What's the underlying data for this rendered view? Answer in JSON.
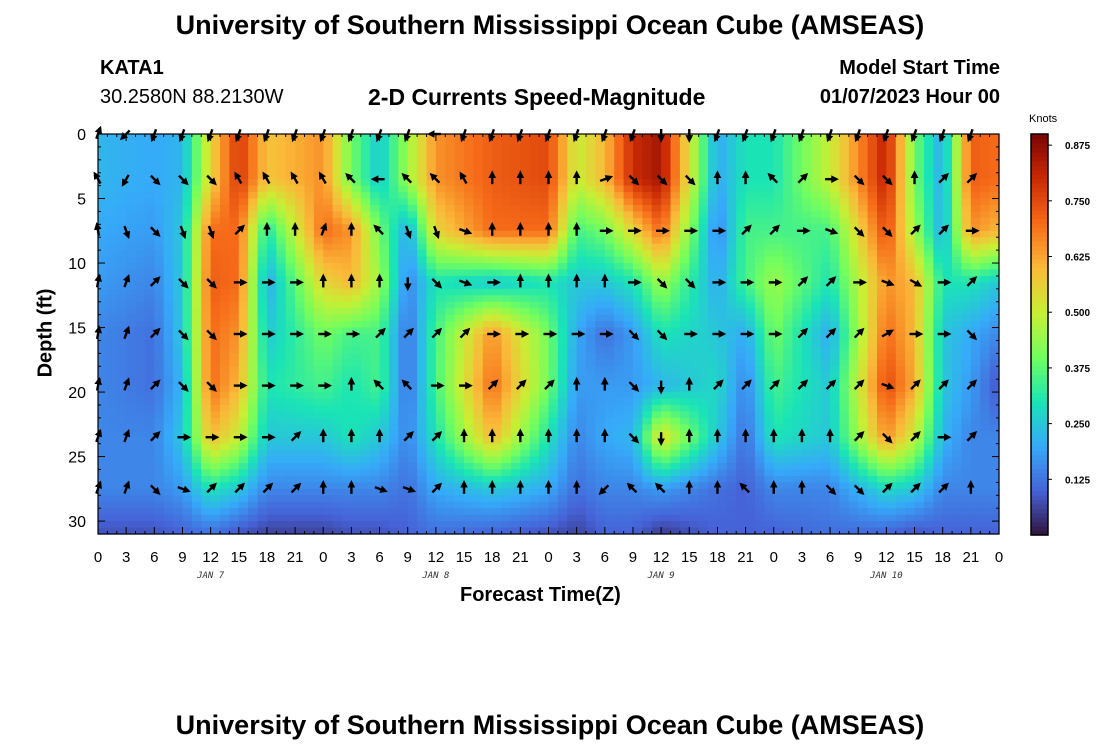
{
  "header": {
    "title": "University of Southern Mississippi Ocean Cube (AMSEAS)",
    "station": "KATA1",
    "coords": "30.2580N  88.2130W",
    "subtitle": "2-D Currents Speed-Magnitude",
    "model_start_label": "Model Start Time",
    "model_start_value": "01/07/2023 Hour 00"
  },
  "footer": {
    "title": "University of Southern Mississippi Ocean Cube (AMSEAS)"
  },
  "colors": {
    "colormap": [
      "#30123b",
      "#4662d7",
      "#36aaf9",
      "#1ae4b6",
      "#72fe5e",
      "#c8ef34",
      "#faba39",
      "#f66b19",
      "#cb2a04",
      "#7a0403"
    ]
  },
  "chart_data": {
    "type": "heatmap",
    "title": "2-D Currents Speed-Magnitude",
    "xlabel": "Forecast Time(Z)",
    "ylabel": "Depth (ft)",
    "colorbar_label": "Knots",
    "x_ticks": [
      "0",
      "3",
      "6",
      "9",
      "12",
      "15",
      "18",
      "21",
      "0",
      "3",
      "6",
      "9",
      "12",
      "15",
      "18",
      "21",
      "0",
      "3",
      "6",
      "9",
      "12",
      "15",
      "18",
      "21",
      "0",
      "3",
      "6",
      "9",
      "12",
      "15",
      "18",
      "21",
      "0"
    ],
    "date_labels": [
      {
        "text": "JAN 7",
        "hour": 12
      },
      {
        "text": "JAN 8",
        "hour": 36
      },
      {
        "text": "JAN 9",
        "hour": 60
      },
      {
        "text": "JAN 10",
        "hour": 84
      }
    ],
    "xlim": [
      0,
      96
    ],
    "ylim": [
      0,
      31
    ],
    "y_ticks": [
      0,
      5,
      10,
      15,
      20,
      25,
      30
    ],
    "colorbar_range": [
      0.0,
      0.9
    ],
    "colorbar_ticks": [
      0.125,
      0.25,
      0.375,
      0.5,
      0.625,
      0.75,
      0.875
    ],
    "depths": [
      0,
      3.5,
      7.5,
      11.5,
      15.5,
      19.5,
      23.5,
      27.5,
      31
    ],
    "times": [
      0,
      6,
      9,
      12,
      15,
      18,
      24,
      27,
      30,
      33,
      36,
      42,
      48,
      51,
      54,
      57,
      60,
      66,
      69,
      72,
      78,
      84,
      87,
      90,
      93,
      96
    ],
    "speed_knots": [
      [
        0.22,
        0.2,
        0.22,
        0.55,
        0.78,
        0.58,
        0.65,
        0.4,
        0.25,
        0.45,
        0.65,
        0.72,
        0.75,
        0.5,
        0.6,
        0.8,
        0.85,
        0.2,
        0.3,
        0.3,
        0.5,
        0.82,
        0.4,
        0.2,
        0.72,
        0.7
      ],
      [
        0.22,
        0.2,
        0.22,
        0.55,
        0.78,
        0.58,
        0.65,
        0.4,
        0.25,
        0.45,
        0.65,
        0.72,
        0.75,
        0.5,
        0.6,
        0.8,
        0.85,
        0.2,
        0.3,
        0.3,
        0.5,
        0.82,
        0.4,
        0.2,
        0.72,
        0.7
      ],
      [
        0.2,
        0.18,
        0.25,
        0.7,
        0.7,
        0.3,
        0.7,
        0.65,
        0.4,
        0.2,
        0.55,
        0.7,
        0.7,
        0.35,
        0.4,
        0.55,
        0.7,
        0.15,
        0.35,
        0.35,
        0.35,
        0.75,
        0.45,
        0.2,
        0.65,
        0.6
      ],
      [
        0.18,
        0.15,
        0.25,
        0.72,
        0.7,
        0.2,
        0.55,
        0.6,
        0.45,
        0.15,
        0.3,
        0.25,
        0.3,
        0.25,
        0.25,
        0.3,
        0.45,
        0.2,
        0.35,
        0.45,
        0.3,
        0.65,
        0.6,
        0.3,
        0.3,
        0.25
      ],
      [
        0.15,
        0.12,
        0.25,
        0.7,
        0.65,
        0.25,
        0.4,
        0.35,
        0.35,
        0.12,
        0.35,
        0.65,
        0.4,
        0.2,
        0.12,
        0.18,
        0.3,
        0.25,
        0.2,
        0.4,
        0.2,
        0.7,
        0.6,
        0.25,
        0.2,
        0.15
      ],
      [
        0.15,
        0.12,
        0.22,
        0.7,
        0.6,
        0.3,
        0.35,
        0.3,
        0.35,
        0.12,
        0.35,
        0.7,
        0.4,
        0.18,
        0.18,
        0.18,
        0.22,
        0.28,
        0.15,
        0.35,
        0.25,
        0.75,
        0.62,
        0.25,
        0.18,
        0.08
      ],
      [
        0.15,
        0.15,
        0.25,
        0.6,
        0.5,
        0.25,
        0.25,
        0.3,
        0.25,
        0.15,
        0.3,
        0.6,
        0.3,
        0.15,
        0.2,
        0.22,
        0.55,
        0.25,
        0.12,
        0.3,
        0.25,
        0.65,
        0.5,
        0.22,
        0.15,
        0.15
      ],
      [
        0.15,
        0.15,
        0.18,
        0.3,
        0.25,
        0.15,
        0.15,
        0.15,
        0.15,
        0.12,
        0.2,
        0.25,
        0.2,
        0.12,
        0.15,
        0.15,
        0.18,
        0.12,
        0.1,
        0.15,
        0.15,
        0.28,
        0.25,
        0.15,
        0.15,
        0.15
      ],
      [
        0.08,
        0.08,
        0.1,
        0.12,
        0.08,
        0.06,
        0.06,
        0.08,
        0.08,
        0.1,
        0.12,
        0.1,
        0.08,
        0.06,
        0.1,
        0.1,
        0.05,
        0.1,
        0.1,
        0.1,
        0.12,
        0.1,
        0.08,
        0.1,
        0.1,
        0.1
      ]
    ],
    "vector_times": [
      0,
      3,
      6,
      9,
      12,
      15,
      18,
      21,
      24,
      27,
      30,
      33,
      36,
      39,
      42,
      45,
      48,
      51,
      54,
      57,
      60,
      63,
      66,
      69,
      72,
      75,
      78,
      81,
      84,
      87,
      90,
      93
    ],
    "vector_depths": [
      0,
      3.5,
      7.5,
      11.5,
      15.5,
      19.5,
      23.5,
      27.5
    ],
    "vector_dir_deg": [
      [
        20,
        225,
        200,
        200,
        200,
        200,
        200,
        200,
        200,
        200,
        200,
        200,
        270,
        200,
        200,
        200,
        200,
        200,
        200,
        200,
        180,
        180,
        200,
        200,
        200,
        200,
        200,
        200,
        200,
        200,
        200,
        200
      ],
      [
        330,
        210,
        135,
        135,
        135,
        330,
        330,
        330,
        330,
        315,
        270,
        315,
        315,
        330,
        0,
        0,
        0,
        0,
        70,
        135,
        135,
        135,
        0,
        0,
        315,
        45,
        90,
        135,
        135,
        0,
        45,
        45
      ],
      [
        350,
        160,
        135,
        160,
        160,
        45,
        0,
        0,
        20,
        0,
        315,
        160,
        160,
        110,
        0,
        0,
        0,
        0,
        90,
        90,
        90,
        90,
        90,
        45,
        45,
        90,
        110,
        135,
        135,
        45,
        45,
        90
      ],
      [
        10,
        20,
        45,
        135,
        135,
        90,
        90,
        90,
        0,
        0,
        0,
        180,
        135,
        110,
        90,
        0,
        0,
        0,
        0,
        90,
        135,
        135,
        90,
        90,
        90,
        45,
        45,
        90,
        110,
        120,
        90,
        45
      ],
      [
        10,
        20,
        45,
        135,
        135,
        90,
        90,
        90,
        90,
        90,
        45,
        45,
        45,
        45,
        90,
        90,
        90,
        90,
        90,
        135,
        135,
        90,
        90,
        90,
        90,
        45,
        45,
        45,
        60,
        90,
        90,
        135
      ],
      [
        10,
        20,
        45,
        135,
        135,
        90,
        90,
        90,
        90,
        0,
        315,
        315,
        90,
        90,
        45,
        45,
        45,
        0,
        0,
        135,
        180,
        0,
        45,
        45,
        45,
        45,
        45,
        45,
        110,
        45,
        45,
        45
      ],
      [
        20,
        20,
        45,
        90,
        90,
        90,
        90,
        45,
        0,
        0,
        0,
        45,
        45,
        0,
        0,
        0,
        0,
        0,
        0,
        135,
        180,
        0,
        0,
        0,
        0,
        0,
        0,
        45,
        135,
        45,
        90,
        45
      ],
      [
        20,
        20,
        135,
        110,
        45,
        45,
        45,
        45,
        0,
        0,
        110,
        110,
        45,
        0,
        0,
        0,
        0,
        0,
        225,
        315,
        315,
        0,
        0,
        315,
        0,
        0,
        135,
        135,
        45,
        45,
        45,
        0
      ]
    ]
  }
}
